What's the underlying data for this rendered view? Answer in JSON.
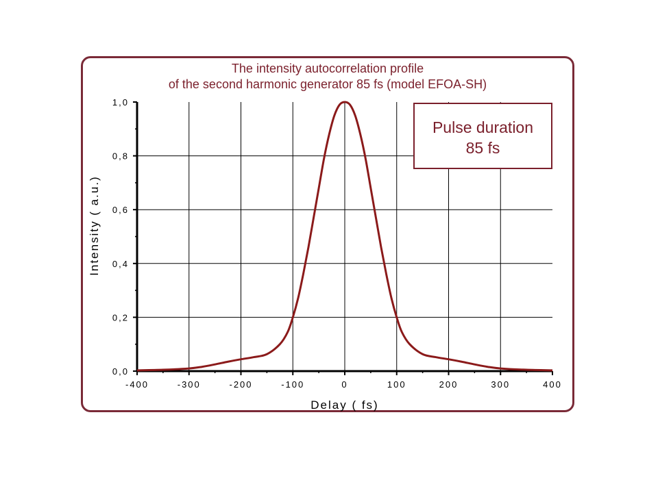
{
  "colors": {
    "accent": "#7a1f2b",
    "frame": "#7a2a37",
    "curve": "#8b1a1a",
    "grid": "#000000"
  },
  "note_box": {
    "line1": "Pulse duration",
    "line2": "85 fs"
  },
  "chart_data": {
    "type": "line",
    "title": "The intensity autocorrelation profile",
    "subtitle": "of the second harmonic generator 85 fs (model EFOA-SH)",
    "xlabel": "Delay  ( fs)",
    "ylabel": "Intensity  ( a.u.)",
    "xlim": [
      -400,
      400
    ],
    "ylim": [
      0.0,
      1.0
    ],
    "x_ticks": [
      "-400",
      "-300",
      "-200",
      "-100",
      "0",
      "100",
      "200",
      "300",
      "400"
    ],
    "y_ticks": [
      "0,0",
      "0,2",
      "0,4",
      "0,6",
      "0,8",
      "1,0"
    ],
    "grid": true,
    "series": [
      {
        "x": [
          -400,
          -350,
          -300,
          -275,
          -250,
          -225,
          -200,
          -175,
          -150,
          -125,
          -110,
          -100,
          -90,
          -80,
          -70,
          -60,
          -50,
          -40,
          -30,
          -20,
          -10,
          0,
          10,
          20,
          30,
          40,
          50,
          60,
          70,
          80,
          90,
          100,
          110,
          125,
          150,
          175,
          200,
          225,
          250,
          275,
          300,
          350,
          400
        ],
        "y": [
          0.003,
          0.005,
          0.01,
          0.016,
          0.025,
          0.035,
          0.044,
          0.052,
          0.063,
          0.1,
          0.145,
          0.2,
          0.27,
          0.36,
          0.46,
          0.57,
          0.68,
          0.79,
          0.88,
          0.95,
          0.99,
          1.0,
          0.99,
          0.95,
          0.88,
          0.79,
          0.68,
          0.57,
          0.46,
          0.36,
          0.27,
          0.2,
          0.145,
          0.1,
          0.063,
          0.052,
          0.044,
          0.035,
          0.025,
          0.016,
          0.01,
          0.005,
          0.003
        ]
      }
    ]
  }
}
